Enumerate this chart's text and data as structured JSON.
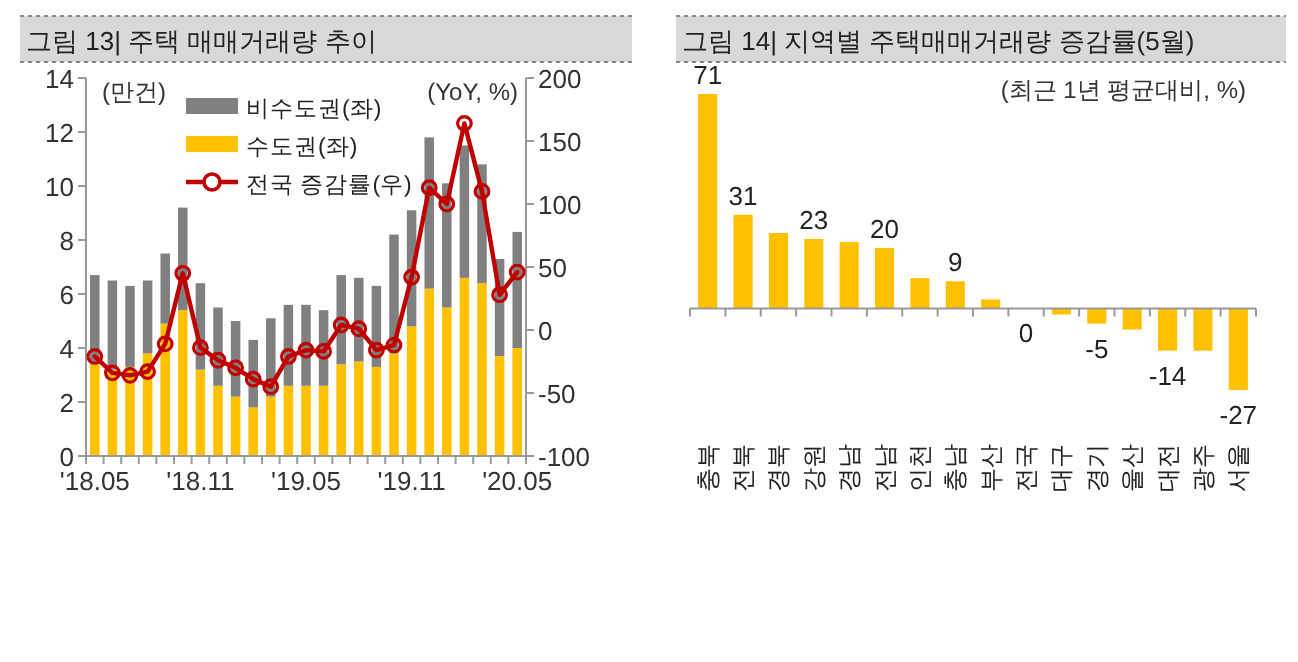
{
  "chart_data": [
    {
      "type": "bar",
      "title": "그림 13| 주택 매매거래량 추이",
      "ylabel": "(만건)",
      "y2label": "(YoY, %)",
      "categories": [
        "'18.05",
        null,
        null,
        null,
        null,
        null,
        "'18.11",
        null,
        null,
        null,
        null,
        null,
        "'19.05",
        null,
        null,
        null,
        null,
        null,
        "'19.11",
        null,
        null,
        null,
        null,
        null,
        "'20.05"
      ],
      "stacked": true,
      "legend": "top",
      "marker": "circle",
      "ylim": [
        0,
        14
      ],
      "yticks": [
        0,
        2,
        4,
        6,
        8,
        10,
        12,
        14
      ],
      "y2lim": [
        -100,
        200
      ],
      "y2ticks": [
        -100,
        -50,
        0,
        50,
        100,
        150,
        200
      ],
      "series": [
        {
          "name": "수도권(좌)",
          "color": "#ffc000",
          "values": [
            3.4,
            3.2,
            3.3,
            3.8,
            4.9,
            5.4,
            3.2,
            2.6,
            2.2,
            1.8,
            2.2,
            2.6,
            2.6,
            2.6,
            3.4,
            3.5,
            3.3,
            3.8,
            4.8,
            6.2,
            5.5,
            6.6,
            6.4,
            3.7,
            4.0
          ]
        },
        {
          "name": "비수도권(좌)",
          "color": "#808080",
          "values": [
            3.3,
            3.3,
            3.0,
            2.7,
            2.6,
            3.8,
            3.2,
            2.9,
            2.8,
            2.5,
            2.9,
            3.0,
            3.0,
            2.8,
            3.3,
            3.1,
            3.0,
            4.4,
            4.3,
            5.6,
            4.6,
            4.9,
            4.4,
            3.6,
            4.3
          ]
        },
        {
          "name": "전국 증감률(우)",
          "type": "line",
          "axis": "y2",
          "color": "#c00000",
          "values": [
            -21,
            -34,
            -36,
            -33,
            -11,
            45,
            -14,
            -24,
            -30,
            -39,
            -45,
            -21,
            -16,
            -17,
            4,
            1,
            -16,
            -12,
            42,
            113,
            100,
            164,
            110,
            28,
            46
          ]
        }
      ]
    },
    {
      "type": "bar",
      "title": "그림 14| 지역별 주택매매거래량 증감률(5월)",
      "ylabel": "(최근 1년 평균대비, %)",
      "categories": [
        "충북",
        "전북",
        "경북",
        "강원",
        "경남",
        "전남",
        "인천",
        "충남",
        "부산",
        "전국",
        "대구",
        "경기",
        "울산",
        "대전",
        "광주",
        "서울"
      ],
      "color": "#ffc000",
      "values": [
        71,
        31,
        25,
        23,
        22,
        20,
        10,
        9,
        3,
        0,
        -2,
        -5,
        -7,
        -14,
        -14,
        -27
      ],
      "value_labels": [
        "71",
        "31",
        null,
        "23",
        null,
        "20",
        null,
        "9",
        null,
        "0",
        null,
        "-5",
        null,
        "-14",
        null,
        "-27"
      ]
    }
  ]
}
